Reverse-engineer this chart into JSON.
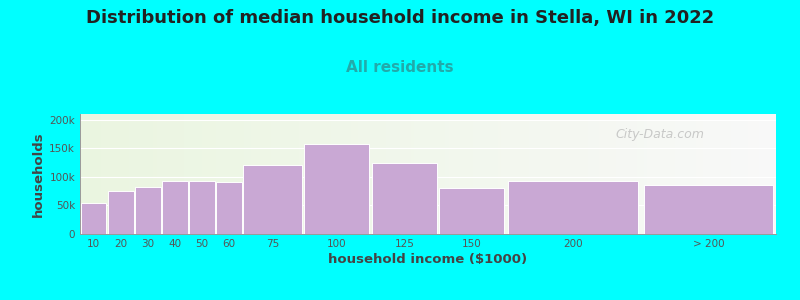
{
  "title": "Distribution of median household income in Stella, WI in 2022",
  "subtitle": "All residents",
  "xlabel": "household income ($1000)",
  "ylabel": "households",
  "bar_color": "#C9A8D4",
  "background_color": "#00FFFF",
  "categories": [
    "10",
    "20",
    "30",
    "40",
    "50",
    "60",
    "75",
    "100",
    "125",
    "150",
    "200",
    "> 200"
  ],
  "values": [
    55000,
    75000,
    82000,
    93000,
    93000,
    91000,
    120000,
    158000,
    125000,
    80000,
    93000,
    86000
  ],
  "ylim": [
    0,
    210000
  ],
  "yticks": [
    0,
    50000,
    100000,
    150000,
    200000
  ],
  "ytick_labels": [
    "0",
    "50k",
    "100k",
    "150k",
    "200k"
  ],
  "title_fontsize": 13,
  "subtitle_fontsize": 11,
  "subtitle_color": "#22aaaa",
  "title_color": "#222222",
  "axis_label_color": "#444444",
  "tick_color": "#555555",
  "watermark": "City-Data.com",
  "bar_lefts": [
    5,
    15,
    25,
    35,
    45,
    55,
    65,
    87.5,
    112.5,
    137.5,
    162.5,
    212.5
  ],
  "bar_widths": [
    10,
    10,
    10,
    10,
    10,
    10,
    22.5,
    25,
    25,
    25,
    50,
    50
  ],
  "xlim_left": 5,
  "xlim_right": 262.5
}
